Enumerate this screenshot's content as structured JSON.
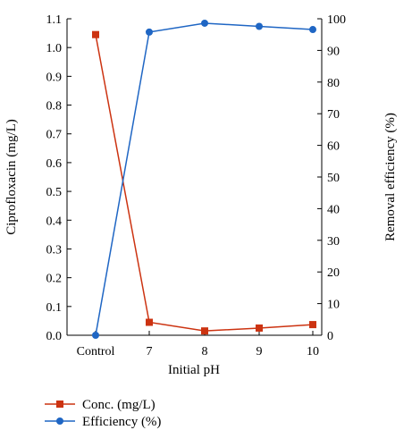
{
  "chart_data": {
    "type": "line",
    "categories": [
      "Control",
      "7",
      "8",
      "9",
      "10"
    ],
    "xlabel": "Initial pH",
    "ylabel_left": "Ciprofloxacin (mg/L)",
    "ylabel_right": "Removal efficiency (%)",
    "ylim_left": [
      0,
      1.1
    ],
    "ylim_right": [
      0,
      100
    ],
    "yticks_left": [
      "0.0",
      "0.1",
      "0.2",
      "0.3",
      "0.4",
      "0.5",
      "0.6",
      "0.7",
      "0.8",
      "0.9",
      "1.0",
      "1.1"
    ],
    "yticks_right": [
      "0",
      "10",
      "20",
      "30",
      "40",
      "50",
      "60",
      "70",
      "80",
      "90",
      "100"
    ],
    "grid": false,
    "legend_position": "bottom-left",
    "series": [
      {
        "name": "Conc. (mg/L)",
        "axis": "left",
        "color": "#cc3311",
        "marker": "square",
        "values": [
          1.045,
          0.045,
          0.015,
          0.025,
          0.037
        ]
      },
      {
        "name": "Efficiency (%)",
        "axis": "right",
        "color": "#1f66c4",
        "marker": "circle",
        "values": [
          0,
          95.8,
          98.6,
          97.6,
          96.6
        ]
      }
    ]
  }
}
